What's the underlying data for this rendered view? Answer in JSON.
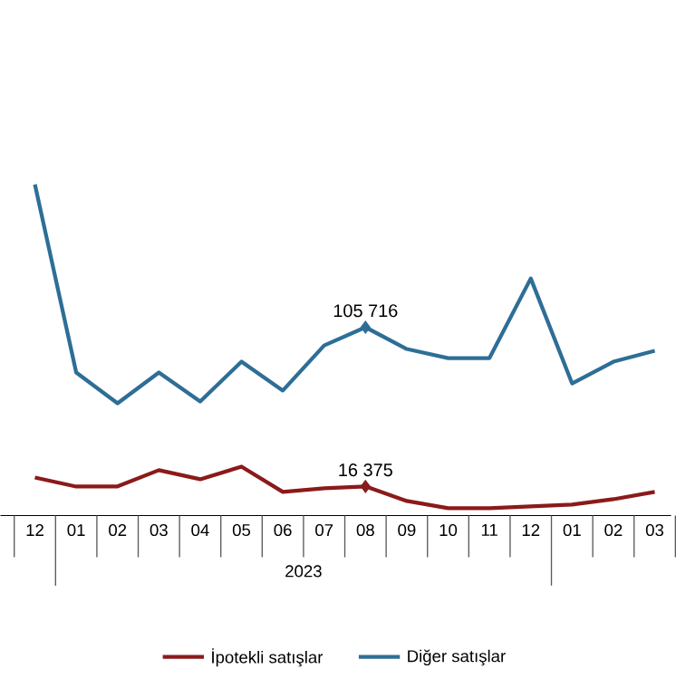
{
  "chart_data": {
    "type": "line",
    "categories": [
      "12",
      "01",
      "02",
      "03",
      "04",
      "05",
      "06",
      "07",
      "08",
      "09",
      "10",
      "11",
      "12",
      "01",
      "02",
      "03"
    ],
    "series": [
      {
        "name": "İpotekli satışlar",
        "color": "#8b1a1a",
        "values": [
          21400,
          16300,
          16400,
          25500,
          20400,
          27500,
          13300,
          15300,
          16375,
          8200,
          4200,
          4200,
          5200,
          6200,
          9200,
          13300
        ],
        "value_labels": [
          null,
          null,
          null,
          null,
          null,
          null,
          null,
          null,
          "16 375",
          null,
          null,
          null,
          null,
          null,
          null,
          null
        ]
      },
      {
        "name": "Diğer satışlar",
        "color": "#2e6e96",
        "values": [
          185900,
          80300,
          63000,
          80300,
          64100,
          86400,
          70200,
          95500,
          105716,
          93500,
          88400,
          88400,
          133100,
          74200,
          86400,
          92500
        ],
        "value_labels": [
          null,
          null,
          null,
          null,
          null,
          null,
          null,
          null,
          "105 716",
          null,
          null,
          null,
          null,
          null,
          null,
          null
        ]
      }
    ],
    "annotations": [
      "2023"
    ],
    "legend": "bottom",
    "grid": false,
    "marker": "none",
    "line_style": "solid",
    "tick_labels": "x"
  }
}
